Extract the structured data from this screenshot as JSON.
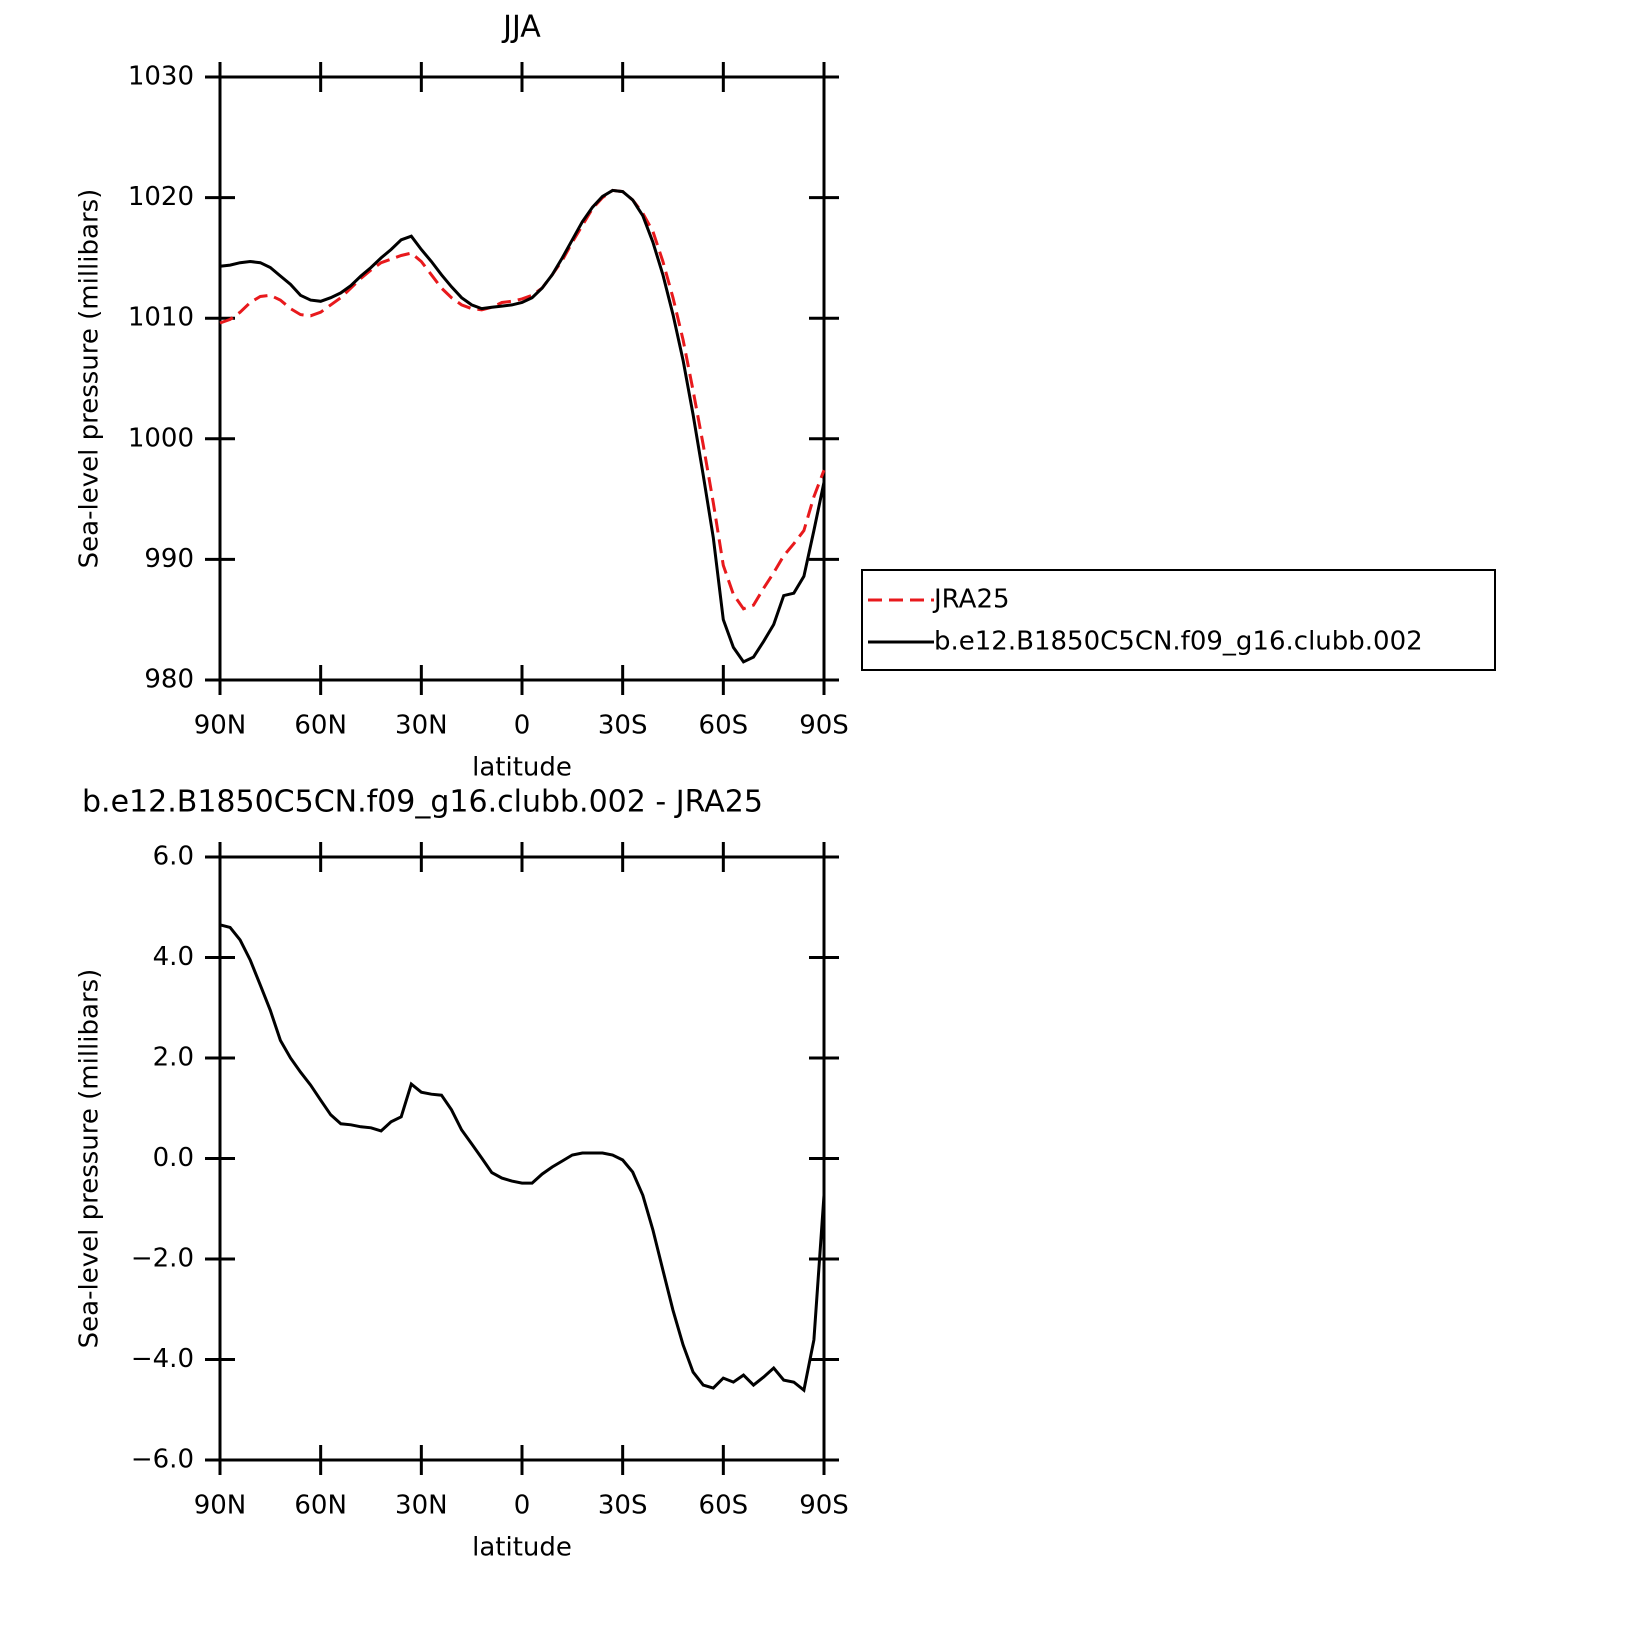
{
  "chart_data": [
    {
      "type": "line",
      "title": "JJA",
      "xlabel": "latitude",
      "ylabel": "Sea-level pressure (millibars)",
      "xlim": [
        90,
        -90
      ],
      "xticks": [
        {
          "value": 90,
          "label": "90N"
        },
        {
          "value": 60,
          "label": "60N"
        },
        {
          "value": 30,
          "label": "30N"
        },
        0,
        {
          "value": -30,
          "label": "30S"
        },
        {
          "value": -60,
          "label": "60S"
        },
        {
          "value": -90,
          "label": "90S"
        }
      ],
      "ylim": [
        980,
        1030
      ],
      "yticks": [
        980,
        990,
        1000,
        1010,
        1020,
        1030
      ],
      "legend": "right",
      "x": [
        90,
        87,
        84,
        81,
        78,
        75,
        72,
        69,
        66,
        63,
        60,
        57,
        54,
        51,
        48,
        45,
        42,
        39,
        36,
        33,
        30,
        27,
        24,
        21,
        18,
        15,
        12,
        9,
        6,
        3,
        0,
        -3,
        -6,
        -9,
        -12,
        -15,
        -18,
        -21,
        -24,
        -27,
        -30,
        -33,
        -36,
        -39,
        -42,
        -45,
        -48,
        -51,
        -54,
        -57,
        -60,
        -63,
        -66,
        -69,
        -72,
        -75,
        -78,
        -81,
        -84,
        -87,
        -90
      ],
      "series": [
        {
          "name": "JRA25",
          "color": "#e8191c",
          "linestyle": "dashed",
          "values": [
            1009.6,
            1009.9,
            1010.5,
            1011.3,
            1011.8,
            1011.9,
            1011.5,
            1010.8,
            1010.3,
            1010.2,
            1010.5,
            1011.1,
            1011.7,
            1012.5,
            1013.3,
            1014.0,
            1014.6,
            1014.9,
            1015.2,
            1015.4,
            1014.7,
            1013.6,
            1012.5,
            1011.7,
            1011.1,
            1010.8,
            1010.7,
            1010.9,
            1011.3,
            1011.4,
            1011.6,
            1011.9,
            1012.5,
            1013.6,
            1014.8,
            1016.3,
            1017.7,
            1019.1,
            1020.0,
            1020.6,
            1020.5,
            1019.8,
            1018.7,
            1017.2,
            1014.7,
            1011.7,
            1008.2,
            1004.0,
            999.5,
            994.7,
            989.5,
            987.1,
            985.9,
            986.2,
            987.6,
            988.9,
            990.3,
            991.3,
            992.4,
            995.2,
            997.4
          ]
        },
        {
          "name": "b.e12.B1850C5CN.f09_g16.clubb.002",
          "color": "#000000",
          "linestyle": "solid",
          "values": [
            1014.3,
            1014.4,
            1014.6,
            1014.7,
            1014.6,
            1014.2,
            1013.5,
            1012.8,
            1011.9,
            1011.5,
            1011.4,
            1011.7,
            1012.1,
            1012.7,
            1013.5,
            1014.2,
            1015.0,
            1015.7,
            1016.5,
            1016.8,
            1015.7,
            1014.7,
            1013.6,
            1012.6,
            1011.7,
            1011.1,
            1010.8,
            1010.9,
            1011.0,
            1011.1,
            1011.3,
            1011.7,
            1012.5,
            1013.6,
            1015.0,
            1016.5,
            1018.0,
            1019.2,
            1020.1,
            1020.6,
            1020.5,
            1019.8,
            1018.5,
            1016.3,
            1013.6,
            1010.3,
            1006.5,
            1002.0,
            997.0,
            991.8,
            985.0,
            982.7,
            981.5,
            981.9,
            983.2,
            984.6,
            987.0,
            987.2,
            988.6,
            992.4,
            996.4
          ]
        }
      ]
    },
    {
      "type": "line",
      "title": "b.e12.B1850C5CN.f09_g16.clubb.002 - JRA25",
      "xlabel": "latitude",
      "ylabel": "Sea-level pressure (millibars)",
      "xlim": [
        90,
        -90
      ],
      "xticks": [
        {
          "value": 90,
          "label": "90N"
        },
        {
          "value": 60,
          "label": "60N"
        },
        {
          "value": 30,
          "label": "30N"
        },
        0,
        {
          "value": -30,
          "label": "30S"
        },
        {
          "value": -60,
          "label": "60S"
        },
        {
          "value": -90,
          "label": "90S"
        }
      ],
      "ylim": [
        -6,
        6
      ],
      "yticks": [
        {
          "value": -6,
          "label": "−6.0"
        },
        {
          "value": -4,
          "label": "−4.0"
        },
        {
          "value": -2,
          "label": "−2.0"
        },
        {
          "value": 0,
          "label": "0.0"
        },
        {
          "value": 2,
          "label": "2.0"
        },
        {
          "value": 4,
          "label": "4.0"
        },
        {
          "value": 6,
          "label": "6.0"
        }
      ],
      "x": [
        90,
        87,
        84,
        81,
        78,
        75,
        72,
        69,
        66,
        63,
        60,
        57,
        54,
        51,
        48,
        45,
        42,
        39,
        36,
        33,
        30,
        27,
        24,
        21,
        18,
        15,
        12,
        9,
        6,
        3,
        0,
        -3,
        -6,
        -9,
        -12,
        -15,
        -18,
        -21,
        -24,
        -27,
        -30,
        -33,
        -36,
        -39,
        -42,
        -45,
        -48,
        -51,
        -54,
        -57,
        -60,
        -63,
        -66,
        -69,
        -72,
        -75,
        -78,
        -81,
        -84,
        -87,
        -90
      ],
      "series": [
        {
          "color": "#000000",
          "linestyle": "solid",
          "values": [
            4.65,
            4.6,
            4.35,
            3.95,
            3.45,
            2.95,
            2.35,
            2.0,
            1.72,
            1.46,
            1.16,
            0.87,
            0.69,
            0.67,
            0.63,
            0.61,
            0.55,
            0.73,
            0.83,
            1.48,
            1.32,
            1.28,
            1.26,
            0.97,
            0.57,
            0.29,
            0.01,
            -0.28,
            -0.39,
            -0.45,
            -0.49,
            -0.49,
            -0.31,
            -0.17,
            -0.05,
            0.07,
            0.11,
            0.11,
            0.11,
            0.07,
            -0.03,
            -0.27,
            -0.73,
            -1.42,
            -2.22,
            -3.02,
            -3.71,
            -4.25,
            -4.51,
            -4.57,
            -4.37,
            -4.45,
            -4.31,
            -4.51,
            -4.35,
            -4.17,
            -4.41,
            -4.45,
            -4.61,
            -3.61,
            -0.73
          ]
        }
      ]
    }
  ]
}
